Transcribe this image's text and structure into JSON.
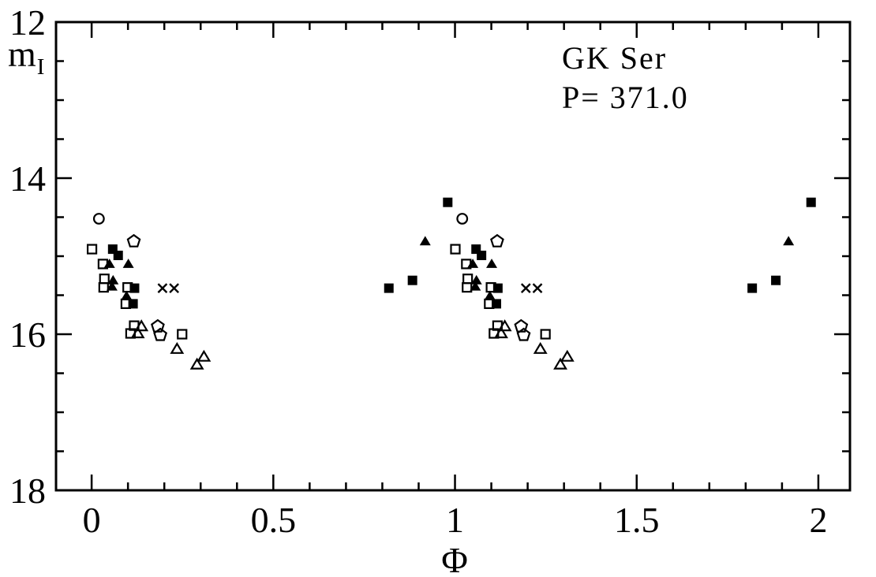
{
  "figure": {
    "background": "#ffffff",
    "ink": "#000000"
  },
  "annotations": {
    "object_name": "GK Ser",
    "period": "P= 371.0"
  },
  "axes": {
    "y_label_main": "m",
    "y_label_sub": "I",
    "x_label": "Φ"
  },
  "chart_data": {
    "type": "scatter",
    "title": "GK Ser",
    "subtitle": "P= 371.0",
    "xlabel": "Φ",
    "ylabel": "m_I",
    "grid": false,
    "legend": "none",
    "y_axis_inverted_magnitudes": true,
    "xlim": [
      -0.098,
      2.087
    ],
    "ylim": [
      12,
      18
    ],
    "x_major_ticks": [
      0,
      0.5,
      1,
      1.5,
      2
    ],
    "x_major_labels": [
      "0",
      "0.5",
      "1",
      "1.5",
      "2"
    ],
    "x_minor_step": 0.1,
    "y_major_ticks": [
      12,
      14,
      16,
      18
    ],
    "y_major_labels": [
      "12",
      "14",
      "16",
      "18"
    ],
    "y_minor_step": 0.5,
    "phase_duplication": true,
    "phase_duplication_note": "each point at phase p is plotted again at p+1",
    "series": [
      {
        "name": "open squares",
        "marker": "square-open",
        "points": [
          [
            0.001,
            14.91
          ],
          [
            0.031,
            15.1
          ],
          [
            0.035,
            15.29
          ],
          [
            0.033,
            15.4
          ],
          [
            0.099,
            15.4
          ],
          [
            0.094,
            15.61
          ],
          [
            0.117,
            15.89
          ],
          [
            0.107,
            15.99
          ],
          [
            0.249,
            16.0
          ]
        ]
      },
      {
        "name": "open circles",
        "marker": "circle-open",
        "points": [
          [
            0.02,
            14.52
          ]
        ]
      },
      {
        "name": "open pentagons",
        "marker": "pentagon-open",
        "points": [
          [
            0.116,
            14.81
          ],
          [
            0.182,
            15.9
          ],
          [
            0.189,
            16.01
          ]
        ]
      },
      {
        "name": "open triangles",
        "marker": "triangle-open",
        "points": [
          [
            0.137,
            15.9
          ],
          [
            0.127,
            15.99
          ],
          [
            0.235,
            16.19
          ],
          [
            0.29,
            16.39
          ],
          [
            0.309,
            16.29
          ]
        ]
      },
      {
        "name": "filled squares",
        "marker": "square-filled",
        "points": [
          [
            0.058,
            14.91
          ],
          [
            0.073,
            14.99
          ],
          [
            0.118,
            15.41
          ],
          [
            0.114,
            15.61
          ],
          [
            0.818,
            15.41
          ],
          [
            0.883,
            15.31
          ],
          [
            0.98,
            14.31
          ]
        ]
      },
      {
        "name": "filled triangles",
        "marker": "triangle-filled",
        "points": [
          [
            0.049,
            15.1
          ],
          [
            0.101,
            15.1
          ],
          [
            0.059,
            15.31
          ],
          [
            0.056,
            15.39
          ],
          [
            0.096,
            15.51
          ],
          [
            0.918,
            14.81
          ]
        ]
      },
      {
        "name": "crosses",
        "marker": "x-cross",
        "points": [
          [
            0.195,
            15.41
          ],
          [
            0.227,
            15.41
          ]
        ]
      }
    ]
  }
}
